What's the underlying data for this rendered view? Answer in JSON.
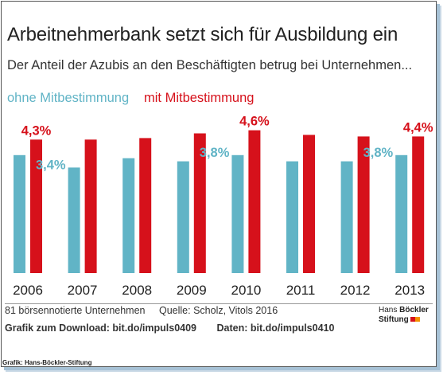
{
  "chart_data": {
    "type": "bar",
    "title": "Arbeitnehmerbank setzt sich für Ausbildung ein",
    "subtitle": "Der Anteil der Azubis an den Beschäftigten betrug bei Unternehmen...",
    "categories": [
      "2006",
      "2007",
      "2008",
      "2009",
      "2010",
      "2011",
      "2012",
      "2013"
    ],
    "series": [
      {
        "name": "ohne Mitbestimmung",
        "color": "#61b4c6",
        "values": [
          3.8,
          3.4,
          3.7,
          3.6,
          3.8,
          3.6,
          3.6,
          3.8
        ],
        "labels": [
          "",
          "3,4%",
          "",
          "",
          "3,8%",
          "",
          "",
          "3,8%"
        ]
      },
      {
        "name": "mit Mitbestimmung",
        "color": "#d6111b",
        "values": [
          4.3,
          4.3,
          4.35,
          4.5,
          4.6,
          4.45,
          4.4,
          4.4
        ],
        "labels": [
          "4,3%",
          "",
          "",
          "",
          "4,6%",
          "",
          "",
          "4,4%"
        ]
      }
    ],
    "ylim": [
      0,
      4.6
    ],
    "grid": false,
    "legend": "top-left"
  },
  "legend": {
    "ohne": "ohne Mitbestimmung",
    "mit": "mit Mitbestimmung"
  },
  "notes": {
    "sample": "81 börsennotierte Unternehmen",
    "source": "Quelle: Scholz, Vitols 2016",
    "download": "Grafik zum Download: bit.do/impuls0409",
    "data": "Daten: bit.do/impuls0410"
  },
  "logo": {
    "line1": "Hans",
    "line1b": "Böckler",
    "line2": "Stiftung",
    "colors": [
      "#d6111b",
      "#f39200"
    ]
  },
  "footer": "Grafik: Hans-Böckler-Stiftung"
}
